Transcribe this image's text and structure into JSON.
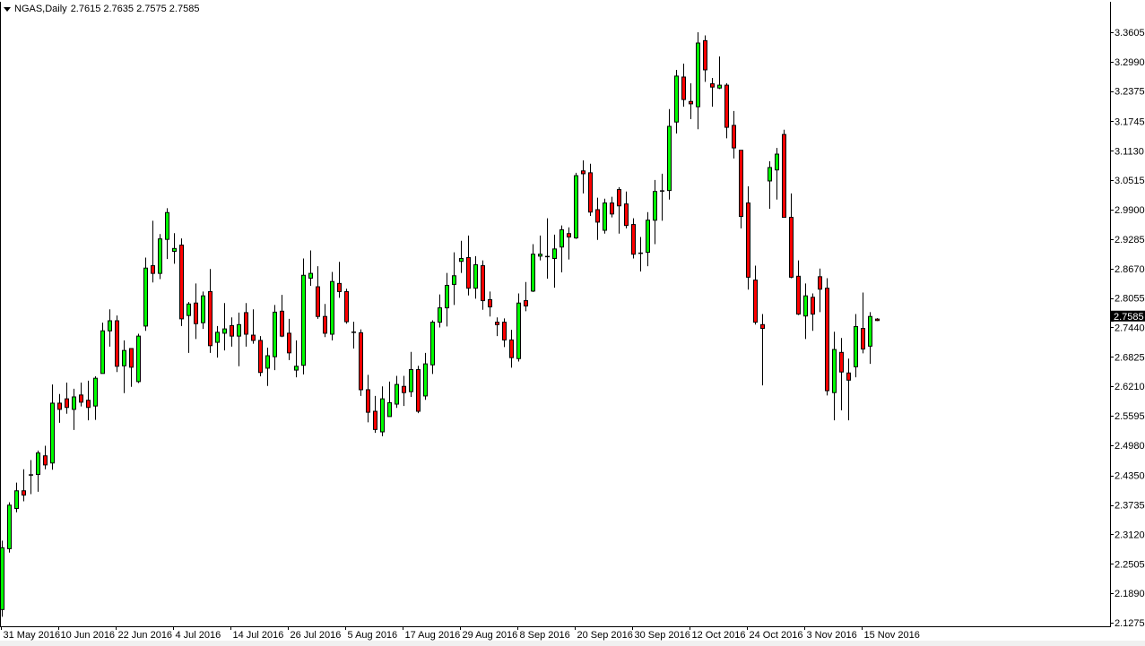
{
  "header": {
    "symbol": "NGAS,Daily",
    "ohlc": "2.7615 2.7635 2.7575 2.7585"
  },
  "colors": {
    "bull": "#00ff00",
    "bear": "#ff0000",
    "outline": "#000000",
    "background": "#ffffff",
    "price_label_bg": "#000000"
  },
  "chart_data": {
    "type": "candlestick",
    "title": "NGAS,Daily",
    "ylim": [
      2.1275,
      3.3605
    ],
    "y_ticks": [
      "3.3605",
      "3.2990",
      "3.2375",
      "3.1745",
      "3.1130",
      "3.0515",
      "2.9900",
      "2.9285",
      "2.8670",
      "2.8055",
      "2.7440",
      "2.6825",
      "2.6210",
      "2.5595",
      "2.4980",
      "2.4350",
      "2.3735",
      "2.3120",
      "2.2505",
      "2.1890",
      "2.1275"
    ],
    "x_ticks": [
      {
        "date": "2016-05-31",
        "label": "31 May 2016"
      },
      {
        "date": "2016-06-10",
        "label": "10 Jun 2016"
      },
      {
        "date": "2016-06-22",
        "label": "22 Jun 2016"
      },
      {
        "date": "2016-07-04",
        "label": "4 Jul 2016"
      },
      {
        "date": "2016-07-14",
        "label": "14 Jul 2016"
      },
      {
        "date": "2016-07-26",
        "label": "26 Jul 2016"
      },
      {
        "date": "2016-08-05",
        "label": "5 Aug 2016"
      },
      {
        "date": "2016-08-17",
        "label": "17 Aug 2016"
      },
      {
        "date": "2016-08-29",
        "label": "29 Aug 2016"
      },
      {
        "date": "2016-09-08",
        "label": "8 Sep 2016"
      },
      {
        "date": "2016-09-20",
        "label": "20 Sep 2016"
      },
      {
        "date": "2016-09-30",
        "label": "30 Sep 2016"
      },
      {
        "date": "2016-10-12",
        "label": "12 Oct 2016"
      },
      {
        "date": "2016-10-24",
        "label": "24 Oct 2016"
      },
      {
        "date": "2016-11-03",
        "label": "3 Nov 2016"
      },
      {
        "date": "2016-11-15",
        "label": "15 Nov 2016"
      }
    ],
    "current_price": "2.7585",
    "grid": false,
    "columns": [
      "date",
      "open",
      "high",
      "low",
      "close"
    ],
    "candles": [
      [
        "2016-05-31",
        2.155,
        2.299,
        2.14,
        2.284
      ],
      [
        "2016-06-01",
        2.282,
        2.379,
        2.274,
        2.373
      ],
      [
        "2016-06-02",
        2.366,
        2.42,
        2.358,
        2.403
      ],
      [
        "2016-06-03",
        2.403,
        2.448,
        2.381,
        2.394
      ],
      [
        "2016-06-06",
        2.437,
        2.467,
        2.396,
        2.437
      ],
      [
        "2016-06-07",
        2.437,
        2.487,
        2.401,
        2.482
      ],
      [
        "2016-06-08",
        2.476,
        2.497,
        2.448,
        2.457
      ],
      [
        "2016-06-09",
        2.461,
        2.625,
        2.447,
        2.586
      ],
      [
        "2016-06-10",
        2.586,
        2.605,
        2.545,
        2.573
      ],
      [
        "2016-06-13",
        2.595,
        2.629,
        2.564,
        2.577
      ],
      [
        "2016-06-14",
        2.573,
        2.616,
        2.53,
        2.599
      ],
      [
        "2016-06-15",
        2.603,
        2.629,
        2.579,
        2.588
      ],
      [
        "2016-06-16",
        2.592,
        2.633,
        2.55,
        2.577
      ],
      [
        "2016-06-17",
        2.58,
        2.642,
        2.551,
        2.638
      ],
      [
        "2016-06-20",
        2.648,
        2.754,
        2.648,
        2.737
      ],
      [
        "2016-06-21",
        2.737,
        2.782,
        2.704,
        2.758
      ],
      [
        "2016-06-22",
        2.758,
        2.769,
        2.651,
        2.663
      ],
      [
        "2016-06-23",
        2.664,
        2.717,
        2.607,
        2.696
      ],
      [
        "2016-06-24",
        2.7,
        2.7,
        2.62,
        2.661
      ],
      [
        "2016-06-27",
        2.631,
        2.731,
        2.628,
        2.726
      ],
      [
        "2016-06-28",
        2.747,
        2.89,
        2.737,
        2.868
      ],
      [
        "2016-06-29",
        2.873,
        2.967,
        2.838,
        2.857
      ],
      [
        "2016-06-30",
        2.857,
        2.939,
        2.845,
        2.929
      ],
      [
        "2016-07-01",
        2.928,
        2.993,
        2.887,
        2.984
      ],
      [
        "2016-07-04",
        2.903,
        2.941,
        2.877,
        2.909
      ],
      [
        "2016-07-05",
        2.916,
        2.93,
        2.747,
        2.762
      ],
      [
        "2016-07-06",
        2.769,
        2.797,
        2.691,
        2.793
      ],
      [
        "2016-07-07",
        2.795,
        2.836,
        2.72,
        2.752
      ],
      [
        "2016-07-08",
        2.754,
        2.819,
        2.741,
        2.81
      ],
      [
        "2016-07-11",
        2.819,
        2.866,
        2.691,
        2.706
      ],
      [
        "2016-07-12",
        2.713,
        2.747,
        2.681,
        2.734
      ],
      [
        "2016-07-13",
        2.732,
        2.795,
        2.696,
        2.741
      ],
      [
        "2016-07-14",
        2.748,
        2.765,
        2.704,
        2.726
      ],
      [
        "2016-07-15",
        2.726,
        2.775,
        2.663,
        2.75
      ],
      [
        "2016-07-18",
        2.775,
        2.795,
        2.704,
        2.73
      ],
      [
        "2016-07-19",
        2.728,
        2.782,
        2.71,
        2.717
      ],
      [
        "2016-07-20",
        2.717,
        2.726,
        2.642,
        2.65
      ],
      [
        "2016-07-21",
        2.659,
        2.702,
        2.622,
        2.685
      ],
      [
        "2016-07-22",
        2.683,
        2.791,
        2.655,
        2.776
      ],
      [
        "2016-07-25",
        2.778,
        2.812,
        2.724,
        2.726
      ],
      [
        "2016-07-26",
        2.732,
        2.762,
        2.676,
        2.691
      ],
      [
        "2016-07-27",
        2.655,
        2.717,
        2.64,
        2.663
      ],
      [
        "2016-07-28",
        2.665,
        2.888,
        2.646,
        2.853
      ],
      [
        "2016-07-29",
        2.847,
        2.905,
        2.831,
        2.857
      ],
      [
        "2016-08-01",
        2.829,
        2.872,
        2.762,
        2.767
      ],
      [
        "2016-08-02",
        2.767,
        2.793,
        2.724,
        2.732
      ],
      [
        "2016-08-03",
        2.73,
        2.86,
        2.717,
        2.84
      ],
      [
        "2016-08-04",
        2.836,
        2.881,
        2.806,
        2.819
      ],
      [
        "2016-08-05",
        2.819,
        2.825,
        2.752,
        2.756
      ],
      [
        "2016-08-08",
        2.735,
        2.756,
        2.7,
        2.735
      ],
      [
        "2016-08-09",
        2.733,
        2.74,
        2.601,
        2.614
      ],
      [
        "2016-08-10",
        2.614,
        2.645,
        2.546,
        2.567
      ],
      [
        "2016-08-11",
        2.569,
        2.601,
        2.524,
        2.531
      ],
      [
        "2016-08-12",
        2.526,
        2.621,
        2.517,
        2.595
      ],
      [
        "2016-08-15",
        2.558,
        2.631,
        2.558,
        2.587
      ],
      [
        "2016-08-16",
        2.584,
        2.643,
        2.576,
        2.625
      ],
      [
        "2016-08-17",
        2.621,
        2.643,
        2.58,
        2.608
      ],
      [
        "2016-08-18",
        2.61,
        2.693,
        2.599,
        2.656
      ],
      [
        "2016-08-19",
        2.656,
        2.664,
        2.565,
        2.569
      ],
      [
        "2016-08-22",
        2.601,
        2.691,
        2.593,
        2.668
      ],
      [
        "2016-08-23",
        2.666,
        2.759,
        2.647,
        2.755
      ],
      [
        "2016-08-24",
        2.755,
        2.813,
        2.744,
        2.785
      ],
      [
        "2016-08-25",
        2.785,
        2.858,
        2.746,
        2.832
      ],
      [
        "2016-08-26",
        2.834,
        2.901,
        2.791,
        2.852
      ],
      [
        "2016-08-29",
        2.882,
        2.925,
        2.858,
        2.888
      ],
      [
        "2016-08-30",
        2.89,
        2.936,
        2.811,
        2.826
      ],
      [
        "2016-08-31",
        2.826,
        2.893,
        2.804,
        2.875
      ],
      [
        "2016-09-01",
        2.873,
        2.884,
        2.781,
        2.8
      ],
      [
        "2016-09-02",
        2.802,
        2.819,
        2.767,
        2.787
      ],
      [
        "2016-09-05",
        2.755,
        2.765,
        2.726,
        2.75
      ],
      [
        "2016-09-06",
        2.755,
        2.763,
        2.703,
        2.718
      ],
      [
        "2016-09-07",
        2.718,
        2.739,
        2.66,
        2.681
      ],
      [
        "2016-09-08",
        2.679,
        2.815,
        2.673,
        2.795
      ],
      [
        "2016-09-09",
        2.8,
        2.839,
        2.778,
        2.789
      ],
      [
        "2016-09-12",
        2.82,
        2.918,
        2.818,
        2.897
      ],
      [
        "2016-09-13",
        2.893,
        2.936,
        2.884,
        2.897
      ],
      [
        "2016-09-14",
        2.893,
        2.972,
        2.846,
        2.893
      ],
      [
        "2016-09-15",
        2.888,
        2.938,
        2.827,
        2.908
      ],
      [
        "2016-09-16",
        2.912,
        2.957,
        2.859,
        2.948
      ],
      [
        "2016-09-19",
        2.94,
        2.953,
        2.886,
        2.933
      ],
      [
        "2016-09-20",
        2.931,
        3.067,
        2.929,
        3.061
      ],
      [
        "2016-09-21",
        3.071,
        3.093,
        3.024,
        3.065
      ],
      [
        "2016-09-22",
        3.067,
        3.086,
        2.977,
        2.985
      ],
      [
        "2016-09-23",
        2.99,
        3.015,
        2.927,
        2.964
      ],
      [
        "2016-09-26",
        2.947,
        3.013,
        2.94,
        3.004
      ],
      [
        "2016-09-27",
        3.004,
        3.017,
        2.974,
        2.981
      ],
      [
        "2016-09-28",
        3.032,
        3.037,
        2.94,
        2.998
      ],
      [
        "2016-09-29",
        3.002,
        3.028,
        2.951,
        2.957
      ],
      [
        "2016-09-30",
        2.959,
        2.972,
        2.888,
        2.897
      ],
      [
        "2016-10-03",
        2.9,
        2.933,
        2.861,
        2.9
      ],
      [
        "2016-10-04",
        2.901,
        2.985,
        2.872,
        2.968
      ],
      [
        "2016-10-05",
        2.968,
        3.052,
        2.918,
        3.028
      ],
      [
        "2016-10-06",
        3.03,
        3.065,
        2.967,
        3.03
      ],
      [
        "2016-10-07",
        3.03,
        3.2,
        3.011,
        3.164
      ],
      [
        "2016-10-10",
        3.173,
        3.282,
        3.149,
        3.269
      ],
      [
        "2016-10-11",
        3.267,
        3.295,
        3.205,
        3.22
      ],
      [
        "2016-10-12",
        3.216,
        3.254,
        3.179,
        3.211
      ],
      [
        "2016-10-13",
        3.205,
        3.3605,
        3.158,
        3.338
      ],
      [
        "2016-10-14",
        3.343,
        3.354,
        3.257,
        3.282
      ],
      [
        "2016-10-17",
        3.253,
        3.265,
        3.205,
        3.246
      ],
      [
        "2016-10-18",
        3.244,
        3.31,
        3.242,
        3.25
      ],
      [
        "2016-10-19",
        3.25,
        3.254,
        3.139,
        3.162
      ],
      [
        "2016-10-20",
        3.166,
        3.196,
        3.097,
        3.119
      ],
      [
        "2016-10-21",
        3.114,
        3.114,
        2.951,
        2.976
      ],
      [
        "2016-10-24",
        3.004,
        3.039,
        2.823,
        2.849
      ],
      [
        "2016-10-25",
        2.843,
        2.873,
        2.75,
        2.755
      ],
      [
        "2016-10-26",
        2.75,
        2.772,
        2.623,
        2.742
      ],
      [
        "2016-10-27",
        3.05,
        3.091,
        2.992,
        3.078
      ],
      [
        "2016-10-28",
        3.073,
        3.119,
        3.011,
        3.106
      ],
      [
        "2016-10-31",
        3.147,
        3.157,
        2.974,
        2.974
      ],
      [
        "2016-11-01",
        2.974,
        3.024,
        2.847,
        2.849
      ],
      [
        "2016-11-02",
        2.851,
        2.884,
        2.77,
        2.772
      ],
      [
        "2016-11-03",
        2.768,
        2.836,
        2.72,
        2.81
      ],
      [
        "2016-11-04",
        2.807,
        2.815,
        2.737,
        2.772
      ],
      [
        "2016-11-07",
        2.85,
        2.867,
        2.776,
        2.824
      ],
      [
        "2016-11-08",
        2.826,
        2.847,
        2.602,
        2.612
      ],
      [
        "2016-11-09",
        2.608,
        2.735,
        2.55,
        2.698
      ],
      [
        "2016-11-10",
        2.692,
        2.722,
        2.571,
        2.651
      ],
      [
        "2016-11-11",
        2.649,
        2.679,
        2.55,
        2.634
      ],
      [
        "2016-11-14",
        2.662,
        2.772,
        2.64,
        2.746
      ],
      [
        "2016-11-15",
        2.742,
        2.817,
        2.69,
        2.699
      ],
      [
        "2016-11-16",
        2.705,
        2.776,
        2.668,
        2.767
      ],
      [
        "2016-11-17",
        2.7615,
        2.7635,
        2.7575,
        2.7585
      ]
    ]
  }
}
